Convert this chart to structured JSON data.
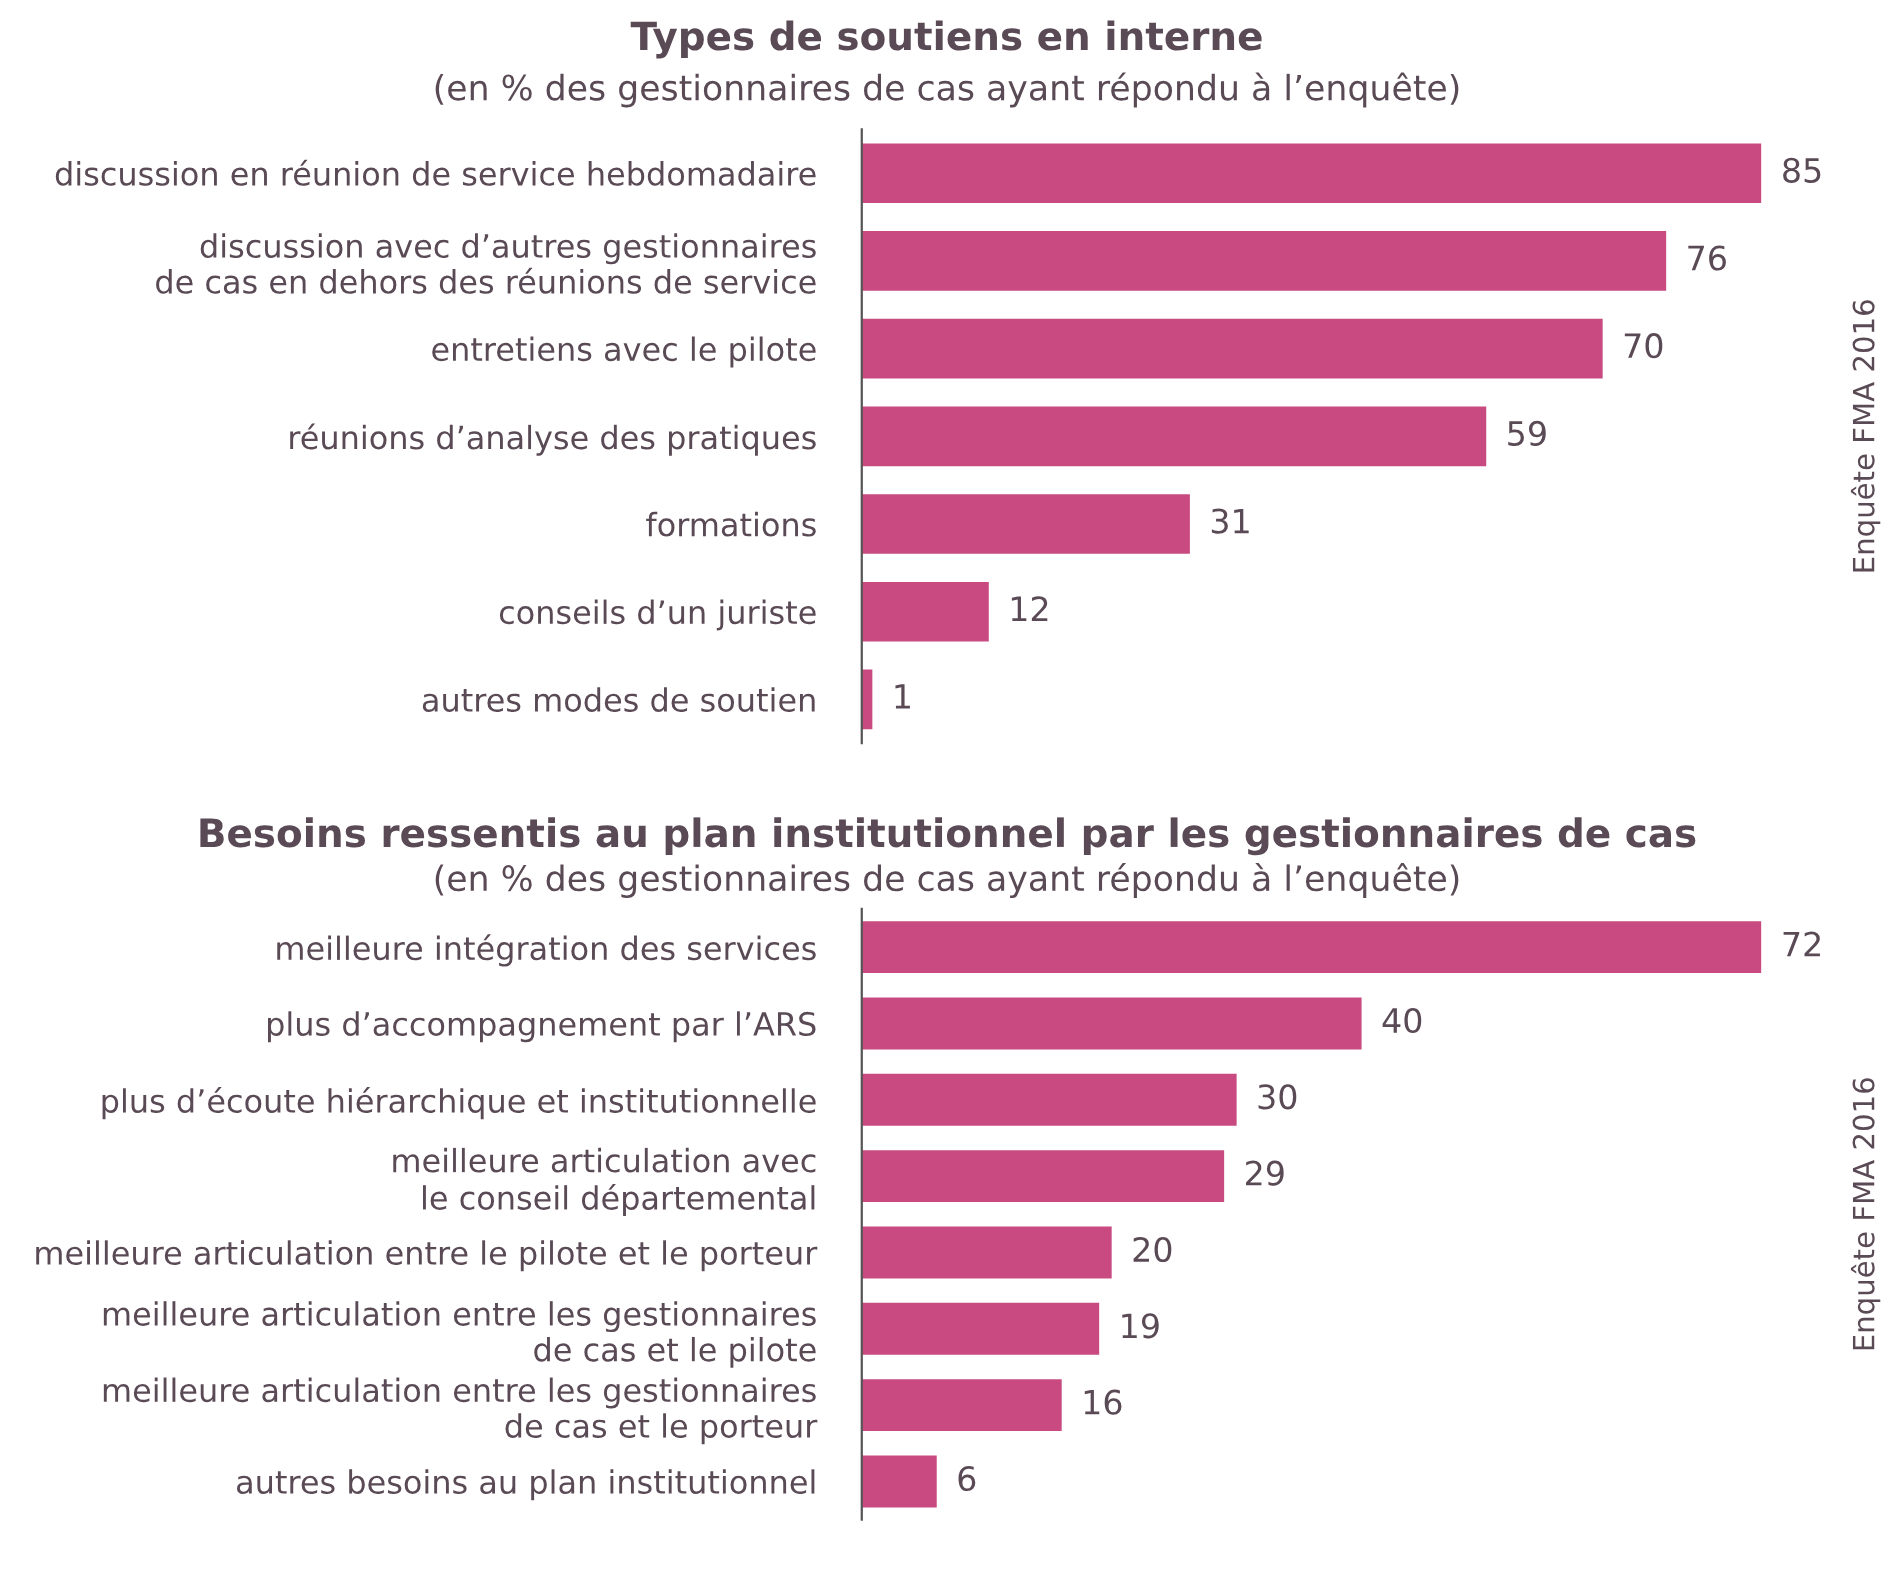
{
  "chart_data": [
    {
      "type": "bar",
      "orientation": "horizontal",
      "title": "Types de soutiens en interne",
      "subtitle": "(en % des gestionnaires de cas ayant répondu à l’enquête)",
      "categories": [
        "discussion en réunion de service hebdomadaire",
        "discussion avec d’autres gestionnaires\nde cas en dehors des réunions de service",
        "entretiens avec le pilote",
        "réunions d’analyse des pratiques",
        "formations",
        "conseils d’un juriste",
        "autres modes de soutien"
      ],
      "values": [
        85,
        76,
        70,
        59,
        31,
        12,
        1
      ],
      "color": "#c94a80",
      "data_labels": true,
      "grid": false,
      "legend": false,
      "annotations": [
        "Enquête FMA 2016"
      ]
    },
    {
      "type": "bar",
      "orientation": "horizontal",
      "title": "Besoins ressentis au plan institutionnel par les gestionnaires de cas",
      "subtitle": "(en % des gestionnaires de cas ayant répondu à l’enquête)",
      "categories": [
        "meilleure intégration des services",
        "plus d’accompagnement par l’ARS",
        "plus d’écoute hiérarchique et institutionnelle",
        "meilleure articulation avec\nle conseil départemental",
        "meilleure articulation entre le pilote et le porteur",
        "meilleure articulation entre les gestionnaires\nde cas et le pilote",
        "meilleure articulation entre les gestionnaires\nde cas et le porteur",
        "autres besoins au plan institutionnel"
      ],
      "values": [
        72,
        40,
        30,
        29,
        20,
        19,
        16,
        6
      ],
      "color": "#c94a80",
      "data_labels": true,
      "grid": false,
      "legend": false,
      "annotations": [
        "Enquête FMA 2016"
      ]
    }
  ]
}
